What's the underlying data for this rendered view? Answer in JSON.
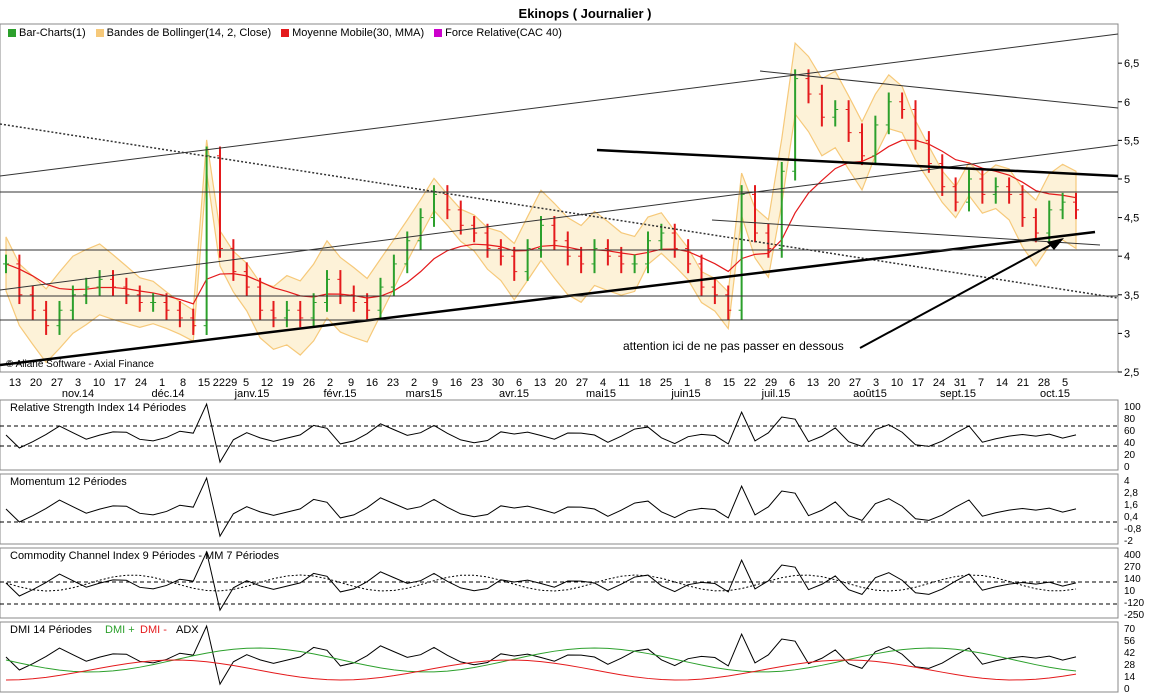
{
  "title": "Ekinops  ( Journalier )",
  "legend": [
    {
      "label": "Bar-Charts(1)",
      "color": "#2ca02c"
    },
    {
      "label": "Bandes de Bollinger(14, 2, Close)",
      "color": "#f6c97a"
    },
    {
      "label": "Moyenne Mobile(30, MMA)",
      "color": "#e41a1c"
    },
    {
      "label": "Force Relative(CAC 40)",
      "color": "#cc00cc"
    }
  ],
  "copyright": "© Aliane Software - Axial Finance",
  "annotation": "attention ici de ne pas passer en dessous",
  "panels": {
    "rsi": "Relative Strength Index 14 Périodes",
    "momentum": "Momentum 12 Périodes",
    "cci": "Commodity Channel Index 9 Périodes - MM  7 Périodes",
    "dmi": "DMI 14 Périodes",
    "dmi_plus": "DMI +",
    "dmi_minus": "DMI -",
    "adx": "ADX"
  },
  "chart_data": {
    "type": "bar",
    "title": "Ekinops  ( Journalier )",
    "price_axis": {
      "ticks": [
        "6,5",
        "6",
        "5,5",
        "5",
        "4,5",
        "4",
        "3,5",
        "3",
        "2,5"
      ],
      "ylim": [
        2.5,
        6.8
      ]
    },
    "day_ticks": [
      "13",
      "20",
      "27",
      "3",
      "10",
      "17",
      "24",
      "1",
      "8",
      "15",
      "2229",
      "5",
      "12",
      "19",
      "26",
      "2",
      "9",
      "16",
      "23",
      "2",
      "9",
      "16",
      "23",
      "30",
      "6",
      "13",
      "20",
      "27",
      "4",
      "11",
      "18",
      "25",
      "1",
      "8",
      "15",
      "22",
      "29",
      "6",
      "13",
      "20",
      "27",
      "3",
      "10",
      "17",
      "24",
      "31",
      "7",
      "14",
      "21",
      "28",
      "5"
    ],
    "month_labels": [
      "nov.14",
      "déc.14",
      "janv.15",
      "févr.15",
      "mars15",
      "avr.15",
      "mai15",
      "juin15",
      "juil.15",
      "août15",
      "sept.15",
      "oct.15"
    ],
    "close_series": [
      3.9,
      3.5,
      3.3,
      3.1,
      3.3,
      3.5,
      3.6,
      3.7,
      3.6,
      3.5,
      3.4,
      3.4,
      3.3,
      3.2,
      3.1,
      5.3,
      4.1,
      3.8,
      3.6,
      3.3,
      3.2,
      3.3,
      3.2,
      3.4,
      3.7,
      3.5,
      3.4,
      3.3,
      3.6,
      3.9,
      4.2,
      4.5,
      4.8,
      4.6,
      4.4,
      4.3,
      4.1,
      4.0,
      3.8,
      4.1,
      4.4,
      4.2,
      4.0,
      3.9,
      4.1,
      4.0,
      3.9,
      3.9,
      4.2,
      4.3,
      4.1,
      3.9,
      3.6,
      3.5,
      3.3,
      4.8,
      4.3,
      4.1,
      5.1,
      6.3,
      6.1,
      5.8,
      5.9,
      5.6,
      5.3,
      5.7,
      6.0,
      5.9,
      5.5,
      5.2,
      4.9,
      4.7,
      5.0,
      4.8,
      4.9,
      4.8,
      4.5,
      4.3,
      4.6,
      4.7,
      4.6
    ],
    "rsi_axis": [
      "100",
      "80",
      "60",
      "40",
      "20",
      "0"
    ],
    "momentum_axis": [
      "4",
      "2,8",
      "1,6",
      "0,4",
      "-0,8",
      "-2"
    ],
    "cci_axis": [
      "400",
      "270",
      "140",
      "10",
      "-120",
      "-250"
    ],
    "dmi_axis": [
      "70",
      "56",
      "42",
      "28",
      "14",
      "0"
    ]
  }
}
